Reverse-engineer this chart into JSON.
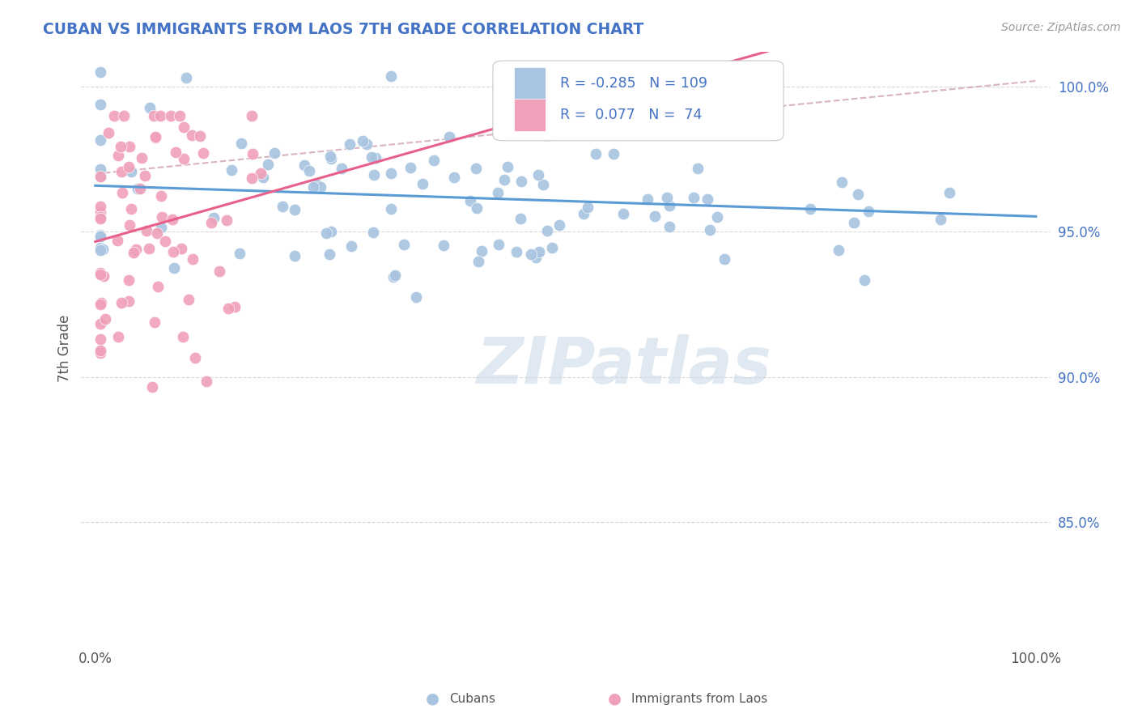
{
  "title": "CUBAN VS IMMIGRANTS FROM LAOS 7TH GRADE CORRELATION CHART",
  "source": "Source: ZipAtlas.com",
  "ylabel": "7th Grade",
  "y_tick_labels": [
    "85.0%",
    "90.0%",
    "95.0%",
    "100.0%"
  ],
  "y_tick_values": [
    0.85,
    0.9,
    0.95,
    1.0
  ],
  "x_range": [
    0.0,
    1.0
  ],
  "y_range": [
    0.808,
    1.012
  ],
  "legend_r_cubans": "-0.285",
  "legend_n_cubans": "109",
  "legend_r_laos": "0.077",
  "legend_n_laos": "74",
  "cubans_color": "#a8c4e0",
  "laos_color": "#f0a0b8",
  "trend_cubans_color": "#5b9bd5",
  "trend_laos_color": "#e8608a",
  "dashed_line_color": "#d0a0b0",
  "watermark": "ZIPatlas",
  "background_color": "#ffffff",
  "grid_color": "#d8d8d8",
  "title_color": "#4472c4",
  "ytick_color": "#4472c4",
  "source_color": "#999999",
  "legend_text_color": "#4472c4"
}
